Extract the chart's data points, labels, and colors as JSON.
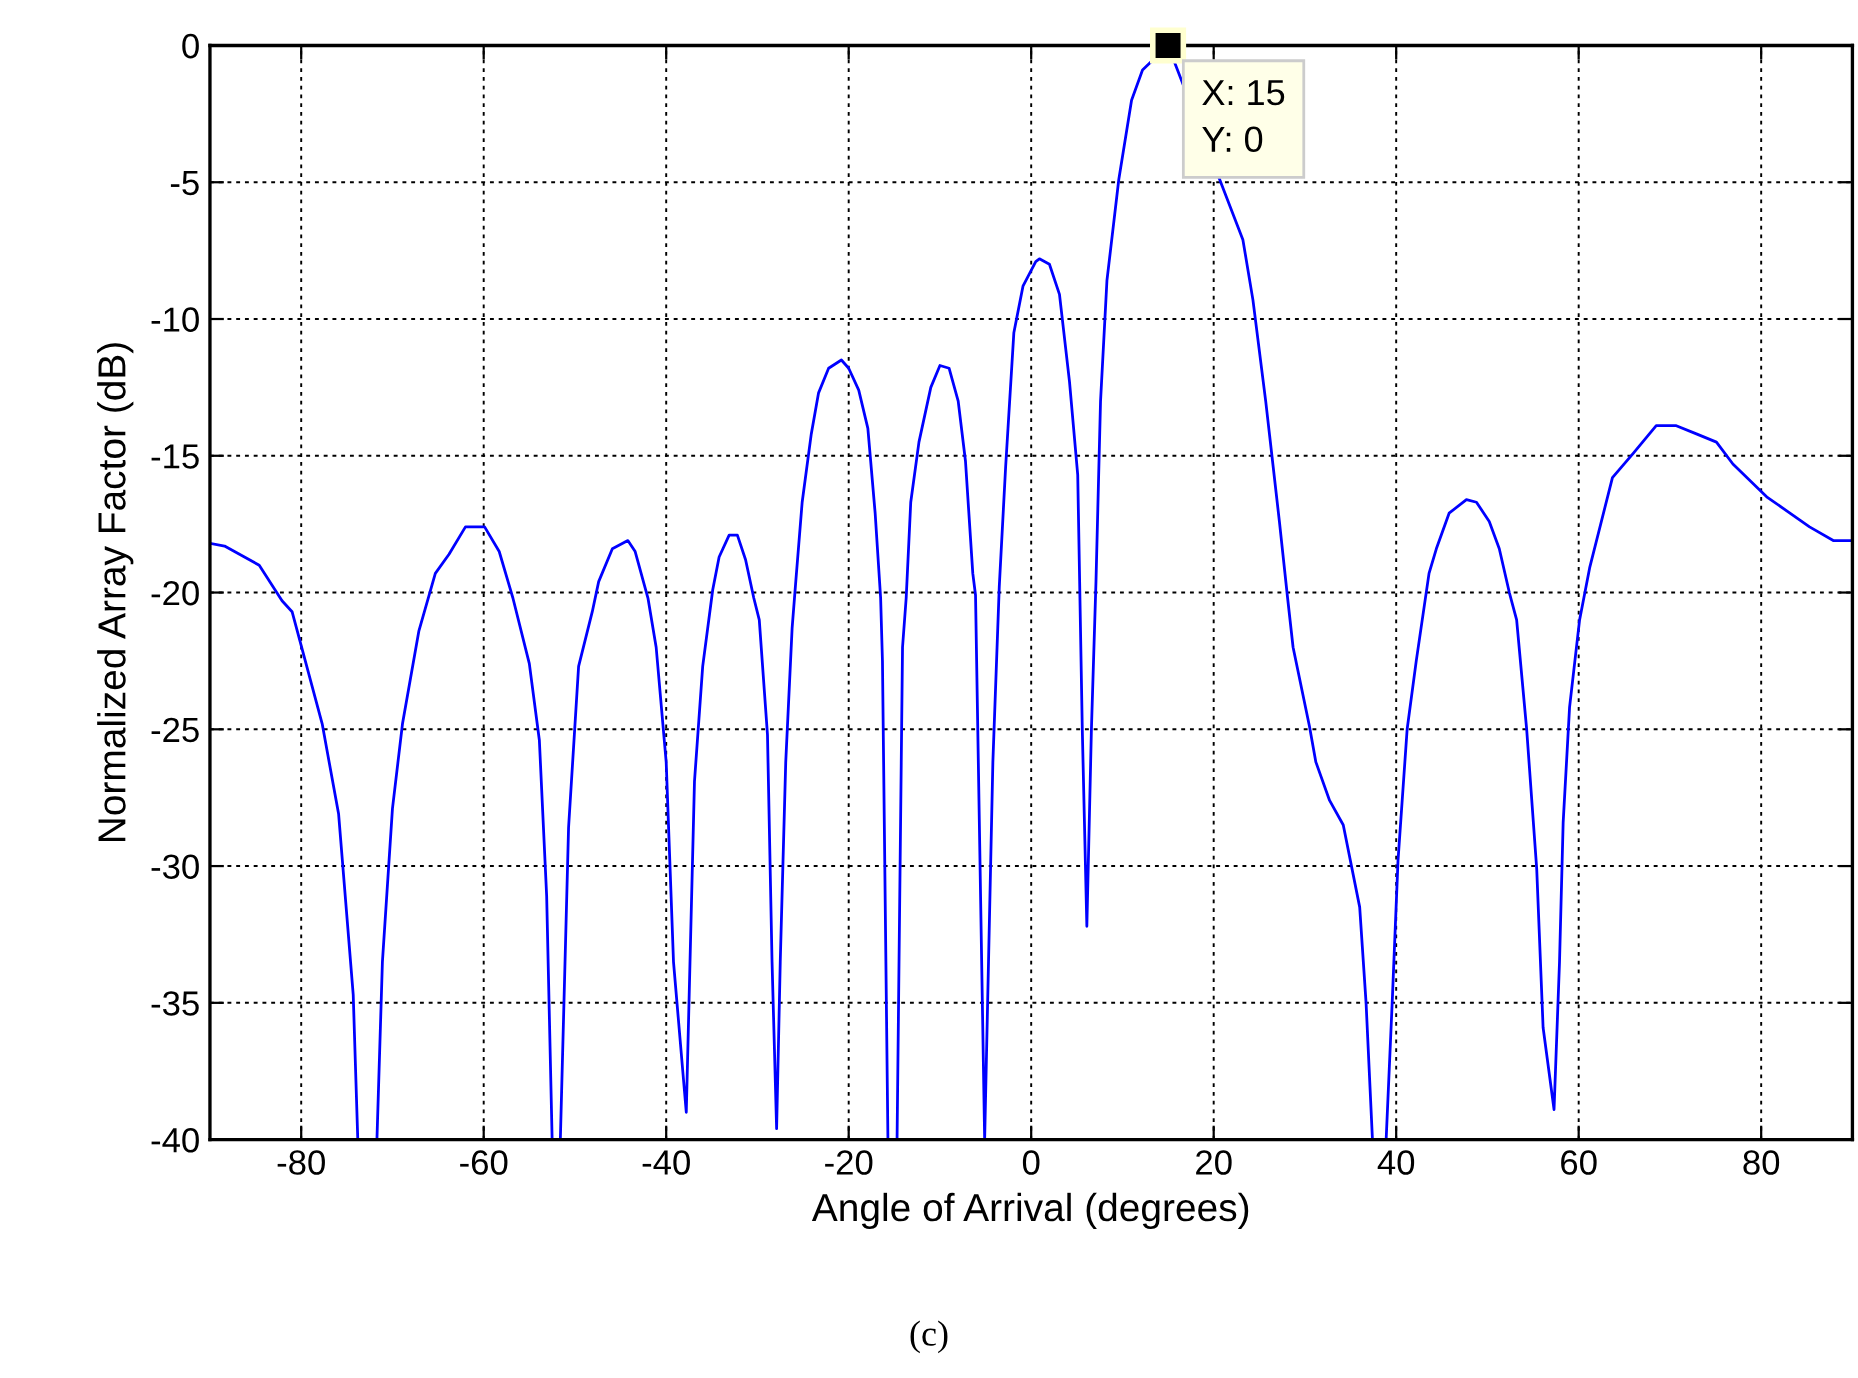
{
  "chart_data": {
    "type": "line",
    "xlabel": "Angle of Arrival (degrees)",
    "ylabel": "Normalized Array Factor (dB)",
    "xlim": [
      -90,
      90
    ],
    "ylim": [
      -40,
      0
    ],
    "xticks": [
      -80,
      -60,
      -40,
      -20,
      0,
      20,
      40,
      60,
      80
    ],
    "yticks": [
      -40,
      -35,
      -30,
      -25,
      -20,
      -15,
      -10,
      -5,
      0
    ],
    "grid": true,
    "marker": "none",
    "line_style": "solid",
    "annotations": [
      {
        "text": "X: 15\nY: 0",
        "x": 15,
        "y": 0
      },
      "(c)"
    ],
    "series": [
      {
        "color": "#0000ff",
        "x": [
          -90,
          -88.4,
          -84.6,
          -82.1,
          -81.0,
          -77.7,
          -75.9,
          -74.3,
          -73.8,
          -71.7,
          -71.1,
          -70.0,
          -68.9,
          -67.1,
          -65.3,
          -63.8,
          -62.0,
          -59.9,
          -58.3,
          -56.8,
          -55.0,
          -53.9,
          -53.1,
          -52.5,
          -51.6,
          -50.7,
          -49.6,
          -48.1,
          -47.4,
          -45.9,
          -44.2,
          -43.4,
          -42.0,
          -41.1,
          -40.0,
          -39.2,
          -37.8,
          -36.9,
          -36.0,
          -34.9,
          -34.2,
          -33.1,
          -32.2,
          -31.3,
          -30.4,
          -29.8,
          -28.9,
          -28.4,
          -27.9,
          -27.5,
          -26.9,
          -26.2,
          -25.8,
          -25.1,
          -24.1,
          -23.3,
          -22.2,
          -20.8,
          -20.0,
          -18.9,
          -17.9,
          -17.1,
          -16.5,
          -16.3,
          -15.7,
          -14.7,
          -14.1,
          -13.7,
          -13.2,
          -12.3,
          -11.0,
          -10.0,
          -9.0,
          -8.0,
          -7.2,
          -6.4,
          -6.1,
          -5.1,
          -4.2,
          -3.5,
          -2.8,
          -1.9,
          -0.9,
          0.5,
          0.9,
          2.0,
          3.1,
          4.2,
          5.1,
          5.6,
          6.1,
          6.6,
          7.1,
          7.6,
          8.3,
          9.6,
          11.0,
          12.2,
          15,
          23.2,
          24.3,
          25.7,
          27.2,
          28.1,
          28.7,
          30.5,
          31.2,
          32.7,
          34.2,
          36.0,
          36.7,
          37.4,
          38.9,
          39.6,
          40.2,
          41.2,
          42.2,
          43.6,
          44.4,
          45.8,
          47.7,
          48.8,
          50.2,
          51.3,
          52.4,
          53.2,
          54.3,
          55.4,
          56.1,
          57.3,
          57.9,
          58.3,
          59.0,
          60.1,
          61.2,
          63.7,
          66.0,
          68.5,
          70.7,
          72.9,
          75.1,
          76.9,
          80.6,
          85.3,
          87.9,
          90
        ],
        "values": [
          -18.2,
          -18.3,
          -19.0,
          -20.3,
          -20.7,
          -24.8,
          -28.1,
          -34.7,
          -40,
          -40,
          -33.5,
          -27.9,
          -24.8,
          -21.4,
          -19.3,
          -18.6,
          -17.6,
          -17.6,
          -18.5,
          -20.2,
          -22.6,
          -25.4,
          -31.1,
          -40,
          -40,
          -28.6,
          -22.7,
          -20.7,
          -19.6,
          -18.4,
          -18.1,
          -18.5,
          -20.2,
          -22.0,
          -26.2,
          -33.5,
          -39.0,
          -26.9,
          -22.7,
          -19.9,
          -18.7,
          -17.9,
          -17.9,
          -18.8,
          -20.2,
          -21.0,
          -25.2,
          -33.5,
          -39.6,
          -33.5,
          -26.2,
          -21.3,
          -19.6,
          -16.7,
          -14.2,
          -12.7,
          -11.8,
          -11.5,
          -11.8,
          -12.6,
          -14.0,
          -17.1,
          -20.2,
          -22.5,
          -40,
          -40,
          -22.0,
          -20.2,
          -16.7,
          -14.5,
          -12.5,
          -11.7,
          -11.8,
          -13.0,
          -15.2,
          -19.3,
          -20.1,
          -40,
          -26.2,
          -19.8,
          -15.4,
          -10.5,
          -8.8,
          -7.9,
          -7.8,
          -8.0,
          -9.1,
          -12.3,
          -15.7,
          -25.0,
          -32.2,
          -25.0,
          -19.6,
          -13.0,
          -8.6,
          -4.9,
          -2.0,
          -0.9,
          0,
          -7.1,
          -9.3,
          -13.0,
          -17.4,
          -20.2,
          -22.0,
          -24.9,
          -26.2,
          -27.6,
          -28.5,
          -31.5,
          -35.0,
          -40,
          -40,
          -34.7,
          -29.8,
          -25.0,
          -22.5,
          -19.3,
          -18.4,
          -17.1,
          -16.6,
          -16.7,
          -17.4,
          -18.4,
          -20.0,
          -21.0,
          -25.0,
          -30.1,
          -35.9,
          -38.9,
          -33.5,
          -28.4,
          -24.2,
          -21.0,
          -19.1,
          -15.8,
          -14.9,
          -13.9,
          -13.9,
          -14.2,
          -14.5,
          -15.3,
          -16.5,
          -17.6,
          -18.1,
          -18.1
        ]
      }
    ]
  }
}
